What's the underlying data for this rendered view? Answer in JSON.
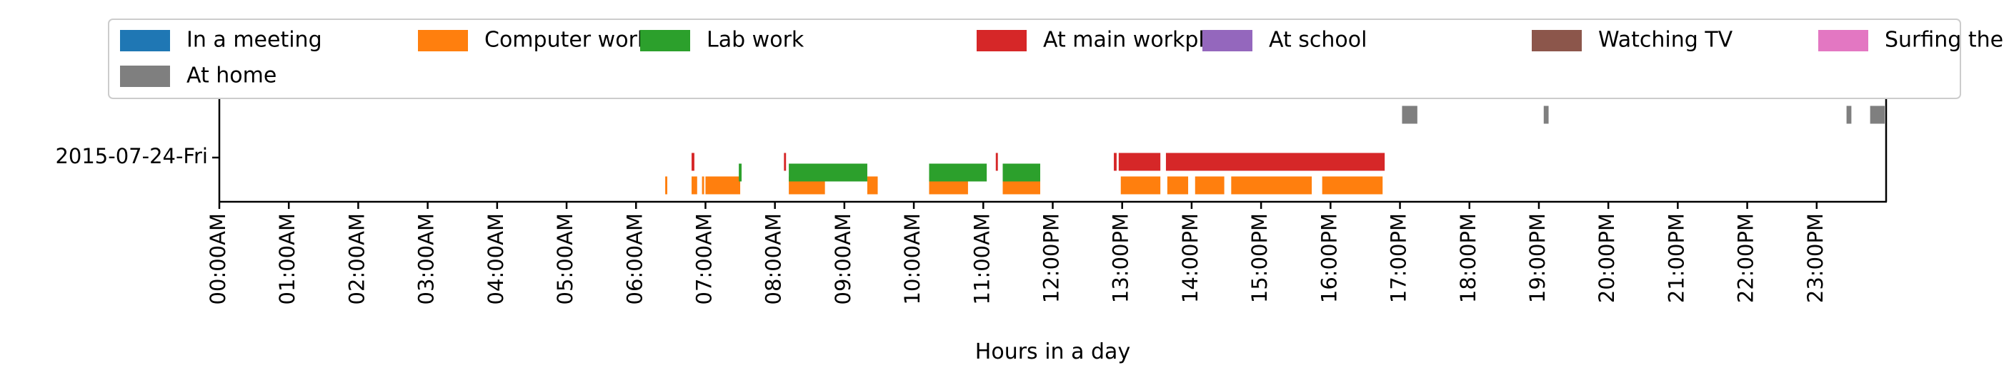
{
  "chart_data": {
    "type": "timeline",
    "title": "",
    "xlabel": "Hours in a day",
    "ylabel": "",
    "xlim": [
      0,
      24
    ],
    "y_tick_label": "2015-07-24-Fri",
    "x_tick_labels": [
      "00:00AM",
      "01:00AM",
      "02:00AM",
      "03:00AM",
      "04:00AM",
      "05:00AM",
      "06:00AM",
      "07:00AM",
      "08:00AM",
      "09:00AM",
      "10:00AM",
      "11:00AM",
      "12:00PM",
      "13:00PM",
      "14:00PM",
      "15:00PM",
      "16:00PM",
      "17:00PM",
      "18:00PM",
      "19:00PM",
      "20:00PM",
      "21:00PM",
      "22:00PM",
      "23:00PM"
    ],
    "legend_position": "top",
    "series": [
      {
        "name": "In a meeting",
        "color": "#1f77b4",
        "lane": 0,
        "intervals": []
      },
      {
        "name": "Computer work",
        "color": "#ff7f0e",
        "lane": 0,
        "intervals": [
          [
            6.42,
            6.45
          ],
          [
            6.8,
            6.88
          ],
          [
            6.95,
            6.98
          ],
          [
            7.0,
            7.5
          ],
          [
            8.2,
            8.72
          ],
          [
            9.33,
            9.48
          ],
          [
            10.22,
            10.78
          ],
          [
            11.28,
            11.82
          ],
          [
            12.98,
            13.55
          ],
          [
            13.65,
            13.95
          ],
          [
            14.05,
            14.47
          ],
          [
            14.57,
            15.73
          ],
          [
            15.88,
            16.75
          ]
        ]
      },
      {
        "name": "Lab work",
        "color": "#2ca02c",
        "lane": 1,
        "intervals": [
          [
            7.48,
            7.52
          ],
          [
            8.2,
            9.33
          ],
          [
            10.22,
            11.05
          ],
          [
            11.28,
            11.82
          ]
        ]
      },
      {
        "name": "At main workplace",
        "color": "#d62728",
        "lane": 2,
        "intervals": [
          [
            6.8,
            6.84
          ],
          [
            8.13,
            8.16
          ],
          [
            11.18,
            11.21
          ],
          [
            12.88,
            12.92
          ],
          [
            12.95,
            13.55
          ],
          [
            13.63,
            16.78
          ]
        ]
      },
      {
        "name": "At school",
        "color": "#9467bd",
        "lane": 3,
        "intervals": []
      },
      {
        "name": "Watching TV",
        "color": "#8c564b",
        "lane": 4,
        "intervals": []
      },
      {
        "name": "Surfing the internet",
        "color": "#e377c2",
        "lane": 5,
        "intervals": []
      },
      {
        "name": "At home",
        "color": "#7f7f7f",
        "lane": 6,
        "intervals": [
          [
            17.03,
            17.25
          ],
          [
            19.07,
            19.14
          ],
          [
            23.43,
            23.5
          ],
          [
            23.77,
            23.98
          ]
        ]
      }
    ]
  }
}
